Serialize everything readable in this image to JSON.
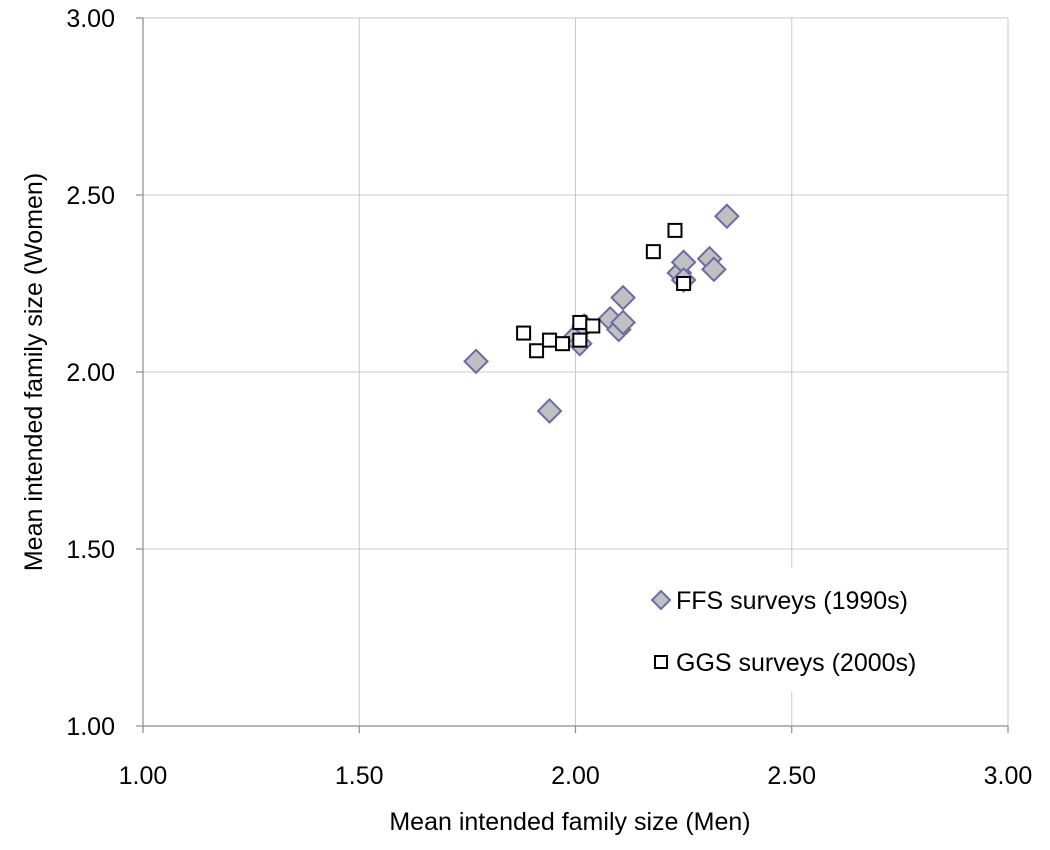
{
  "chart_data": {
    "type": "scatter",
    "title": "",
    "xlabel": "Mean intended family size (Men)",
    "ylabel": "Mean intended family size (Women)",
    "xlim": [
      1.0,
      3.0
    ],
    "ylim": [
      1.0,
      3.0
    ],
    "x_ticks": [
      "1.00",
      "1.50",
      "2.00",
      "2.50",
      "3.00"
    ],
    "y_ticks": [
      "1.00",
      "1.50",
      "2.00",
      "2.50",
      "3.00"
    ],
    "grid": true,
    "legend_position": "bottom-right",
    "series": [
      {
        "name": "FFS surveys (1990s)",
        "marker": "diamond",
        "color": "#c0c0c0",
        "edge_color": "#6b6ba8",
        "points": [
          {
            "x": 1.77,
            "y": 2.03
          },
          {
            "x": 1.94,
            "y": 1.89
          },
          {
            "x": 2.0,
            "y": 2.1
          },
          {
            "x": 2.01,
            "y": 2.08
          },
          {
            "x": 2.02,
            "y": 2.13
          },
          {
            "x": 2.08,
            "y": 2.15
          },
          {
            "x": 2.1,
            "y": 2.12
          },
          {
            "x": 2.11,
            "y": 2.14
          },
          {
            "x": 2.11,
            "y": 2.21
          },
          {
            "x": 2.24,
            "y": 2.28
          },
          {
            "x": 2.25,
            "y": 2.31
          },
          {
            "x": 2.25,
            "y": 2.26
          },
          {
            "x": 2.31,
            "y": 2.32
          },
          {
            "x": 2.32,
            "y": 2.29
          },
          {
            "x": 2.35,
            "y": 2.44
          }
        ]
      },
      {
        "name": "GGS surveys (2000s)",
        "marker": "square",
        "color": "#ffffff",
        "edge_color": "#000000",
        "points": [
          {
            "x": 1.88,
            "y": 2.11
          },
          {
            "x": 1.91,
            "y": 2.06
          },
          {
            "x": 1.94,
            "y": 2.09
          },
          {
            "x": 1.97,
            "y": 2.08
          },
          {
            "x": 2.01,
            "y": 2.14
          },
          {
            "x": 2.01,
            "y": 2.09
          },
          {
            "x": 2.04,
            "y": 2.13
          },
          {
            "x": 2.18,
            "y": 2.34
          },
          {
            "x": 2.23,
            "y": 2.4
          },
          {
            "x": 2.25,
            "y": 2.25
          }
        ]
      }
    ]
  }
}
